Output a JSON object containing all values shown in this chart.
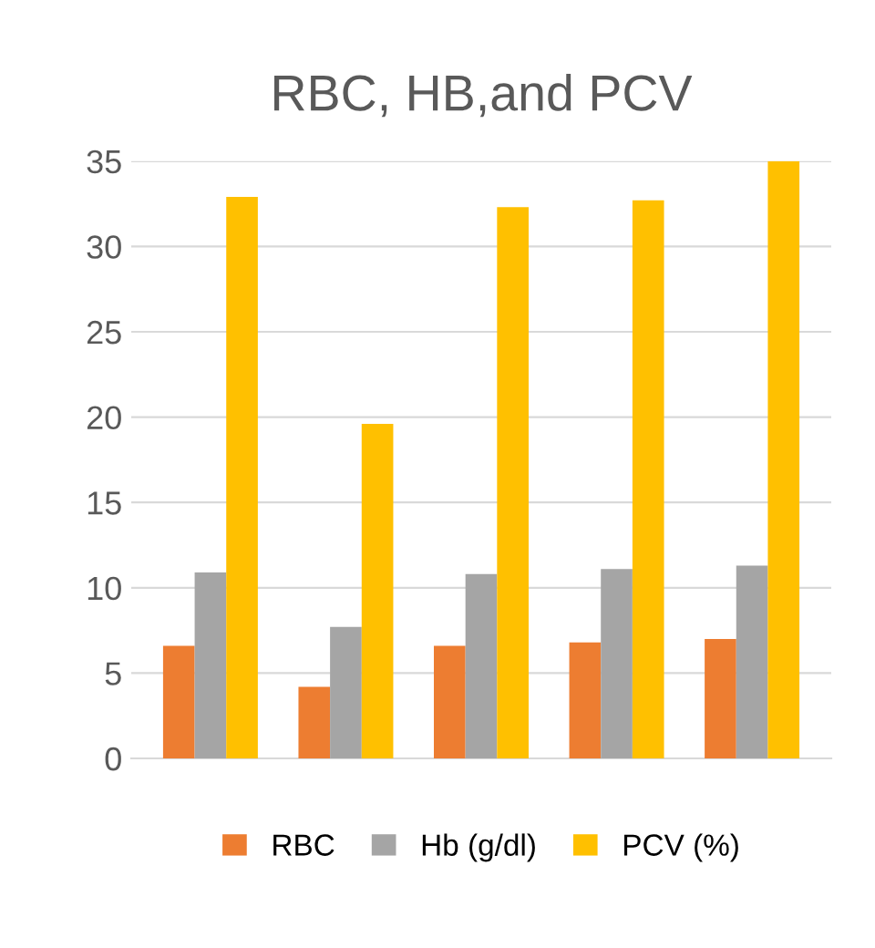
{
  "chart_data": {
    "type": "bar",
    "title": "RBC, HB,and PCV",
    "categories": [
      null,
      null,
      null,
      null,
      null
    ],
    "series": [
      {
        "name": "RBC",
        "color": "#ed7d31",
        "values": [
          6.6,
          4.2,
          6.6,
          6.8,
          7.0
        ]
      },
      {
        "name": "Hb (g/dl)",
        "color": "#a5a5a5",
        "values": [
          10.9,
          7.7,
          10.8,
          11.1,
          11.3
        ]
      },
      {
        "name": "PCV (%)",
        "color": "#ffc000",
        "values": [
          32.9,
          19.6,
          32.3,
          32.7,
          35.0
        ]
      }
    ],
    "ylim": [
      0,
      35
    ],
    "yticks": [
      0,
      5,
      10,
      15,
      20,
      25,
      30,
      35
    ],
    "grid": "y",
    "legend": "bottom"
  }
}
